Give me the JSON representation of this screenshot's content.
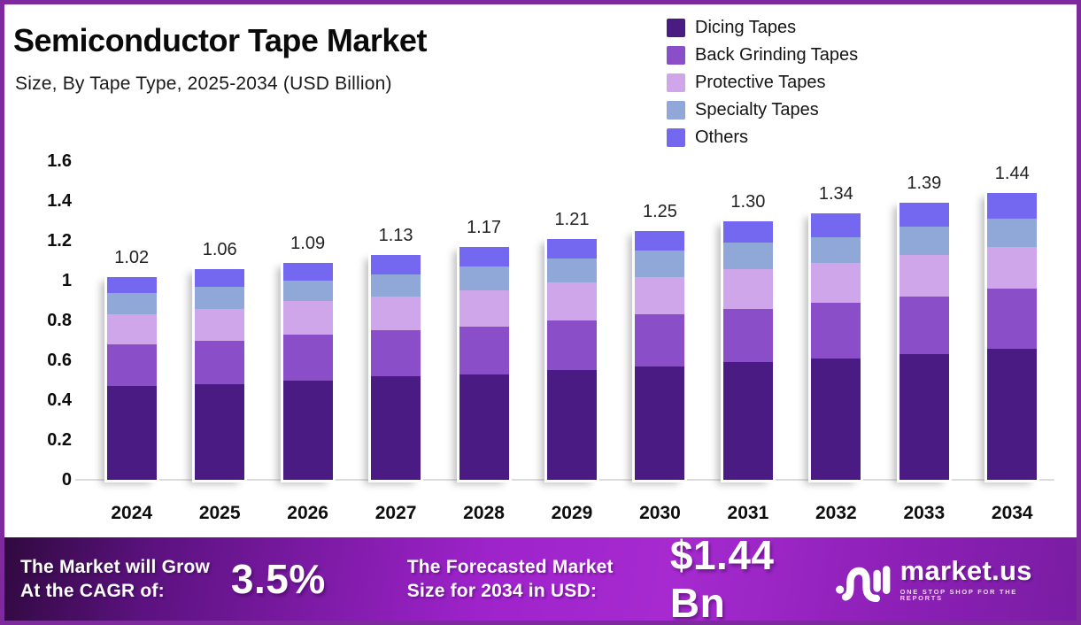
{
  "title": "Semiconductor Tape Market",
  "subtitle": "Size, By Tape Type, 2025-2034 (USD Billion)",
  "chart_data": {
    "type": "bar",
    "stacked": true,
    "title": "Semiconductor Tape Market",
    "subtitle": "Size, By Tape Type, 2025-2034 (USD Billion)",
    "categories": [
      "2024",
      "2025",
      "2026",
      "2027",
      "2028",
      "2029",
      "2030",
      "2031",
      "2032",
      "2033",
      "2034"
    ],
    "series": [
      {
        "name": "Dicing Tapes",
        "color": "#4a1b83",
        "values": [
          0.47,
          0.48,
          0.5,
          0.52,
          0.53,
          0.55,
          0.57,
          0.59,
          0.61,
          0.63,
          0.66
        ]
      },
      {
        "name": "Back Grinding Tapes",
        "color": "#8a4fc8",
        "values": [
          0.21,
          0.22,
          0.23,
          0.23,
          0.24,
          0.25,
          0.26,
          0.27,
          0.28,
          0.29,
          0.3
        ]
      },
      {
        "name": "Protective Tapes",
        "color": "#cfa6ea",
        "values": [
          0.15,
          0.16,
          0.17,
          0.17,
          0.18,
          0.19,
          0.19,
          0.2,
          0.2,
          0.21,
          0.21
        ]
      },
      {
        "name": "Specialty Tapes",
        "color": "#8fa8d8",
        "values": [
          0.11,
          0.11,
          0.1,
          0.11,
          0.12,
          0.12,
          0.13,
          0.13,
          0.13,
          0.14,
          0.14
        ]
      },
      {
        "name": "Others",
        "color": "#7468f1",
        "values": [
          0.08,
          0.09,
          0.09,
          0.1,
          0.1,
          0.1,
          0.1,
          0.11,
          0.12,
          0.12,
          0.13
        ]
      }
    ],
    "totals": [
      1.02,
      1.06,
      1.09,
      1.13,
      1.17,
      1.21,
      1.25,
      1.3,
      1.34,
      1.39,
      1.44
    ],
    "total_labels": [
      "1.02",
      "1.06",
      "1.09",
      "1.13",
      "1.17",
      "1.21",
      "1.25",
      "1.30",
      "1.34",
      "1.39",
      "1.44"
    ],
    "ylim": [
      0,
      1.6
    ],
    "yticks": [
      0,
      0.2,
      0.4,
      0.6,
      0.8,
      1,
      1.2,
      1.4,
      1.6
    ],
    "ytick_labels": [
      "0",
      "0.2",
      "0.4",
      "0.6",
      "0.8",
      "1",
      "1.2",
      "1.4",
      "1.6"
    ],
    "xlabel": "",
    "ylabel": "",
    "grid": false,
    "legend_position": "top-right"
  },
  "footer": {
    "cagr_line1": "The Market will Grow",
    "cagr_line2": "At the CAGR of:",
    "cagr_value": "3.5%",
    "forecast_line1": "The Forecasted Market",
    "forecast_line2": "Size for 2034 in USD:",
    "forecast_value": "$1.44 Bn",
    "brand_name": "market.us",
    "brand_tagline": "ONE STOP SHOP FOR THE REPORTS",
    "brand_icon": "market-us-logo-icon"
  },
  "colors": {
    "frame_border": "#7e2a9e",
    "background": "#ffffff",
    "axis_line": "#dcdcdc",
    "footer_gradient_left": "#30093f",
    "footer_gradient_mid": "#a62ad0",
    "footer_gradient_right": "#7a1da3",
    "footer_text": "#ffffff",
    "tagline_text": "#f2d7f7"
  }
}
